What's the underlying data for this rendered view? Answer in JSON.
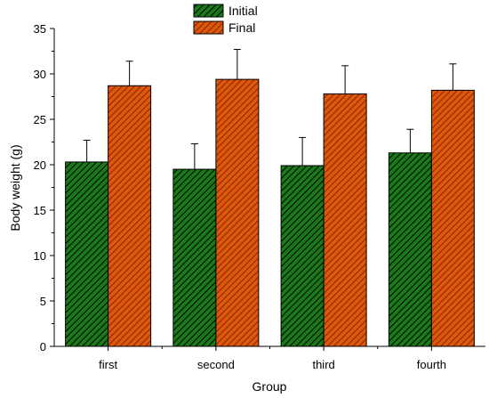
{
  "chart_data": {
    "type": "bar",
    "title": "",
    "xlabel": "Group",
    "ylabel": "Body weight (g)",
    "categories": [
      "first",
      "second",
      "third",
      "fourth"
    ],
    "ylim": [
      0,
      35
    ],
    "yticks": [
      0,
      5,
      10,
      15,
      20,
      25,
      30,
      35
    ],
    "legend_position": "top-center",
    "grid": false,
    "series": [
      {
        "name": "Initial",
        "values": [
          20.3,
          19.5,
          19.9,
          21.3
        ],
        "errors": [
          2.4,
          2.8,
          3.1,
          2.6
        ],
        "color": "#1a7a1a",
        "hatch_color": "#000000",
        "hatch": "diagonal"
      },
      {
        "name": "Final",
        "values": [
          28.7,
          29.4,
          27.8,
          28.2
        ],
        "errors": [
          2.7,
          3.3,
          3.1,
          2.9
        ],
        "color": "#e0560a",
        "hatch_color": "#7a2a00",
        "hatch": "diagonal"
      }
    ]
  }
}
